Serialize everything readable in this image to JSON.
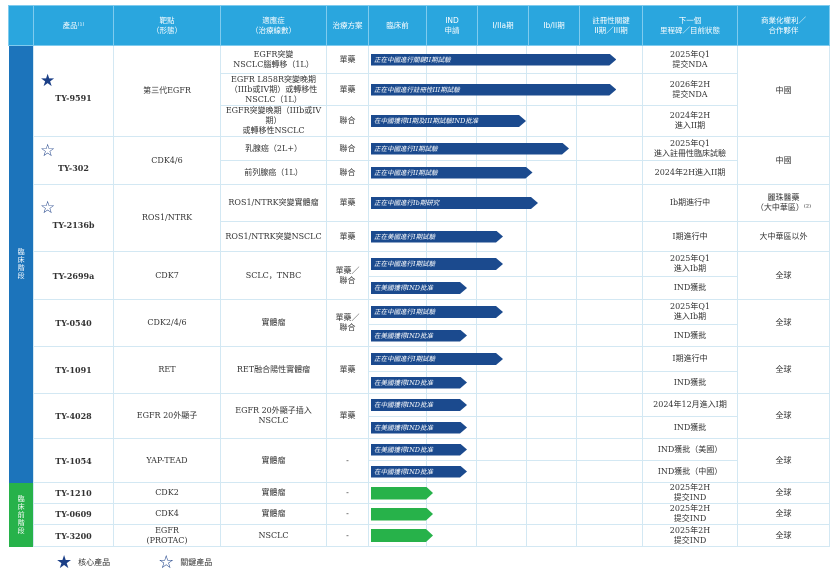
{
  "colors": {
    "header": "#2aa6de",
    "clinical": "#1c74bb",
    "preclinical": "#27b24a",
    "bar": "#1b4a8e",
    "star": "#1b3f87"
  },
  "header": [
    "",
    "產品⁽¹⁾",
    "靶點\n（形態）",
    "適應症\n（治療線數）",
    "治療方案",
    "臨床前",
    "IND\n申請",
    "I/IIa期",
    "Ib/II期",
    "註冊性關鍵\nII期／III期",
    "下一個\n里程碑／目前狀態",
    "商業化權利／\n合作夥伴"
  ],
  "groups": [
    {
      "label": "臨床階段",
      "color": "#1c74bb",
      "products": [
        {
          "name": "TY-9591",
          "star": "filled",
          "target": "第三代EGFR",
          "rights": "中國",
          "rows": [
            {
              "indication": "EGFR突變\nNSCLC腦轉移（1L）",
              "regimen": "單藥",
              "bar_label": "正在中國進行關鍵II期試驗",
              "bar_progress": 4.65,
              "milestone": "2025年Q1\n提交NDA"
            },
            {
              "indication": "EGFR L858R突變晚期\n（IIIb或IV期）或轉移性\nNSCLC（1L）",
              "regimen": "單藥",
              "bar_label": "正在中國進行註冊性III期試驗",
              "bar_progress": 4.65,
              "milestone": "2026年2H\n提交NDA"
            },
            {
              "indication": "EGFR突變晚期（IIIb或IV期）\n或轉移性NSCLC",
              "regimen": "聯合",
              "bar_label": "在中國獲得II期及III期試驗IND批准",
              "bar_progress": 3.0,
              "milestone": "2024年2H\n進入II期"
            }
          ]
        },
        {
          "name": "TY-302",
          "star": "outline",
          "target": "CDK4/6",
          "rights": "中國",
          "rows": [
            {
              "indication": "乳腺癌（2L+）",
              "regimen": "聯合",
              "bar_label": "正在中國進行II期試驗",
              "bar_progress": 3.86,
              "milestone": "2025年Q1\n進入註冊性臨床試驗"
            },
            {
              "indication": "前列腺癌（1L）",
              "regimen": "聯合",
              "bar_label": "正在中國進行II期試驗",
              "bar_progress": 3.13,
              "milestone": "2024年2H進入II期"
            }
          ]
        },
        {
          "name": "TY-2136b",
          "star": "outline",
          "target": "ROS1/NTRK",
          "rows": [
            {
              "indication": "ROS1/NTRK突變實體瘤",
              "regimen": "單藥",
              "bar_label": "正在中國進行Ib期研究",
              "bar_progress": 3.24,
              "milestone": "Ib期進行中",
              "rights": "麗珠醫藥\n（大中華區）⁽²⁾"
            },
            {
              "indication": "ROS1/NTRK突變NSCLC",
              "regimen": "單藥",
              "bar_label": "正在美國進行I期試驗",
              "bar_progress": 2.54,
              "milestone": "I期進行中",
              "rights": "大中華區以外"
            }
          ]
        },
        {
          "name": "TY-2699a",
          "target": "CDK7",
          "indication": "SCLC，TNBC",
          "regimen": "單藥／\n聯合",
          "rights": "全球",
          "rows": [
            {
              "bar_label": "正在中國進行I期試驗",
              "bar_progress": 2.54,
              "milestone": "2025年Q1\n進入Ib期"
            },
            {
              "bar_label": "在美國獲得IND批准",
              "bar_progress": 1.82,
              "milestone": "IND獲批"
            }
          ]
        },
        {
          "name": "TY-0540",
          "target": "CDK2/4/6",
          "indication": "實體瘤",
          "regimen": "單藥／\n聯合",
          "rights": "全球",
          "rows": [
            {
              "bar_label": "正在中國進行I期試驗",
              "bar_progress": 2.54,
              "milestone": "2025年Q1\n進入Ib期"
            },
            {
              "bar_label": "在美國獲得IND批准",
              "bar_progress": 1.82,
              "milestone": "IND獲批"
            }
          ]
        },
        {
          "name": "TY-1091",
          "target": "RET",
          "indication": "RET融合陽性實體瘤",
          "regimen": "單藥",
          "rights": "全球",
          "rows": [
            {
              "bar_label": "正在中國進行I期試驗",
              "bar_progress": 2.54,
              "milestone": "I期進行中"
            },
            {
              "bar_label": "在美國獲得IND批准",
              "bar_progress": 1.82,
              "milestone": "IND獲批"
            }
          ]
        },
        {
          "name": "TY-4028",
          "target": "EGFR 20外顯子",
          "indication": "EGFR 20外顯子插入NSCLC",
          "regimen": "單藥",
          "rights": "全球",
          "rows": [
            {
              "bar_label": "在中國獲得IND批准",
              "bar_progress": 1.82,
              "milestone": "2024年12月進入I期"
            },
            {
              "bar_label": "在美國獲得IND批准",
              "bar_progress": 1.82,
              "milestone": "IND獲批"
            }
          ]
        },
        {
          "name": "TY-1054",
          "target": "YAP-TEAD",
          "indication": "實體瘤",
          "regimen": "-",
          "rights": "全球",
          "rows": [
            {
              "bar_label": "在美國獲得IND批准",
              "bar_progress": 1.82,
              "milestone": "IND獲批（美國）"
            },
            {
              "bar_label": "在中國獲得IND批准",
              "bar_progress": 1.82,
              "milestone": "IND獲批（中國）"
            }
          ]
        }
      ]
    },
    {
      "label": "臨床前階段",
      "color": "#27b24a",
      "products": [
        {
          "name": "TY-1210",
          "target": "CDK2",
          "indication": "實體瘤",
          "regimen": "-",
          "rights": "全球",
          "green": true,
          "rows": [
            {
              "bar_label": "",
              "bar_progress": 1.14,
              "milestone": "2025年2H\n提交IND"
            }
          ]
        },
        {
          "name": "TY-0609",
          "target": "CDK4",
          "indication": "實體瘤",
          "regimen": "-",
          "rights": "全球",
          "green": true,
          "rows": [
            {
              "bar_label": "",
              "bar_progress": 1.14,
              "milestone": "2025年2H\n提交IND"
            }
          ]
        },
        {
          "name": "TY-3200",
          "target": "EGFR\n(PROTAC)",
          "indication": "NSCLC",
          "regimen": "-",
          "rights": "全球",
          "green": true,
          "rows": [
            {
              "bar_label": "",
              "bar_progress": 1.14,
              "milestone": "2025年2H\n提交IND"
            }
          ]
        }
      ]
    }
  ],
  "legend": {
    "core": "核心產品",
    "key": "關鍵產品",
    "core_icon": "star-filled-icon",
    "key_icon": "star-outline-icon"
  }
}
